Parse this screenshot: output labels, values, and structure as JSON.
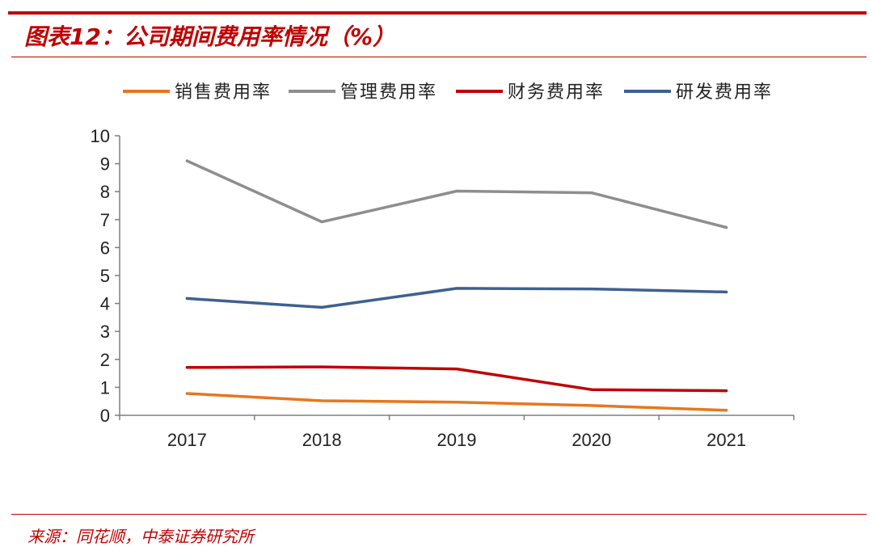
{
  "title": "图表12：公司期间费用率情况（%）",
  "source": "来源：同花顺，中泰证券研究所",
  "chart_data": {
    "type": "line",
    "title": "",
    "xlabel": "",
    "ylabel": "",
    "categories": [
      "2017",
      "2018",
      "2019",
      "2020",
      "2021"
    ],
    "ylim": [
      0,
      10
    ],
    "yticks": [
      "0",
      "1",
      "2",
      "3",
      "4",
      "5",
      "6",
      "7",
      "8",
      "9",
      "10"
    ],
    "grid": false,
    "legend_position": "top",
    "series": [
      {
        "name": "销售费用率",
        "color": "#e8761e",
        "values": [
          0.78,
          0.52,
          0.47,
          0.35,
          0.18
        ]
      },
      {
        "name": "管理费用率",
        "color": "#8e8e8e",
        "values": [
          9.1,
          6.92,
          8.02,
          7.96,
          6.72
        ]
      },
      {
        "name": "财务费用率",
        "color": "#c00000",
        "values": [
          1.71,
          1.73,
          1.66,
          0.92,
          0.88
        ]
      },
      {
        "name": "研发费用率",
        "color": "#3f6090",
        "values": [
          4.18,
          3.86,
          4.54,
          4.52,
          4.41
        ]
      }
    ]
  }
}
